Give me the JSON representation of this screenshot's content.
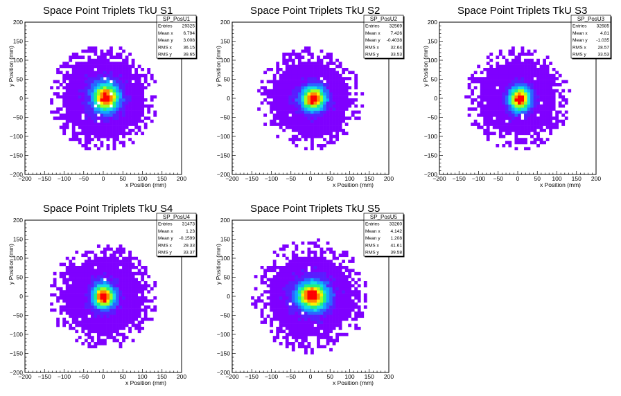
{
  "chart_data": [
    {
      "type": "heatmap",
      "title": "Space Point Triplets TkU S1",
      "xlabel": "x Position (mm)",
      "ylabel": "y Position (mm)",
      "xlim": [
        -200,
        200
      ],
      "ylim": [
        -200,
        200
      ],
      "xticks": [
        "−200",
        "−150",
        "−100",
        "−50",
        "0",
        "50",
        "100",
        "150",
        "200"
      ],
      "yticks": [
        "−200",
        "−150",
        "−100",
        "−50",
        "0",
        "50",
        "100",
        "150",
        "200"
      ],
      "stats": {
        "name": "SP_PosU1",
        "rows": [
          [
            "Entries",
            "29325"
          ],
          [
            "Mean x",
            "6.794"
          ],
          [
            "Mean y",
            "3.008"
          ],
          [
            "RMS x",
            "36.15"
          ],
          [
            "RMS y",
            "39.65"
          ]
        ]
      },
      "distribution": {
        "center_x": 6.794,
        "center_y": 3.008,
        "rms_x": 36.15,
        "rms_y": 39.65,
        "radius": 140
      },
      "peak_color": "#ff0000"
    },
    {
      "type": "heatmap",
      "title": "Space Point Triplets TkU S2",
      "xlabel": "x Position (mm)",
      "ylabel": "y Position (mm)",
      "xlim": [
        -200,
        200
      ],
      "ylim": [
        -200,
        200
      ],
      "xticks": [
        "−200",
        "−150",
        "−100",
        "−50",
        "0",
        "50",
        "100",
        "150",
        "200"
      ],
      "yticks": [
        "−200",
        "−150",
        "−100",
        "−50",
        "0",
        "50",
        "100",
        "150",
        "200"
      ],
      "stats": {
        "name": "SP_PosU2",
        "rows": [
          [
            "Entries",
            "32569"
          ],
          [
            "Mean x",
            "7.426"
          ],
          [
            "Mean y",
            "-0.4038"
          ],
          [
            "RMS x",
            "32.64"
          ],
          [
            "RMS y",
            "33.53"
          ]
        ]
      },
      "distribution": {
        "center_x": 7.426,
        "center_y": -0.4038,
        "rms_x": 32.64,
        "rms_y": 33.53,
        "radius": 135
      },
      "peak_color": "#ff0000"
    },
    {
      "type": "heatmap",
      "title": "Space Point Triplets TkU S3",
      "xlabel": "x Position (mm)",
      "ylabel": "y Position (mm)",
      "xlim": [
        -200,
        200
      ],
      "ylim": [
        -200,
        200
      ],
      "xticks": [
        "−200",
        "−150",
        "−100",
        "−50",
        "0",
        "50",
        "100",
        "150",
        "200"
      ],
      "yticks": [
        "−200",
        "−150",
        "−100",
        "−50",
        "0",
        "50",
        "100",
        "150",
        "200"
      ],
      "stats": {
        "name": "SP_PosU3",
        "rows": [
          [
            "Entries",
            "32685"
          ],
          [
            "Mean x",
            "4.81"
          ],
          [
            "Mean y",
            "-1.035"
          ],
          [
            "RMS x",
            "28.57"
          ],
          [
            "RMS y",
            "33.53"
          ]
        ]
      },
      "distribution": {
        "center_x": 4.81,
        "center_y": -1.035,
        "rms_x": 28.57,
        "rms_y": 33.53,
        "radius": 135
      },
      "peak_color": "#ff0000"
    },
    {
      "type": "heatmap",
      "title": "Space Point Triplets TkU S4",
      "xlabel": "x Position (mm)",
      "ylabel": "y Position (mm)",
      "xlim": [
        -200,
        200
      ],
      "ylim": [
        -200,
        200
      ],
      "xticks": [
        "−200",
        "−150",
        "−100",
        "−50",
        "0",
        "50",
        "100",
        "150",
        "200"
      ],
      "yticks": [
        "−200",
        "−150",
        "−100",
        "−50",
        "0",
        "50",
        "100",
        "150",
        "200"
      ],
      "stats": {
        "name": "SP_PosU4",
        "rows": [
          [
            "Entries",
            "31473"
          ],
          [
            "Mean x",
            "1.23"
          ],
          [
            "Mean y",
            "-0.1599"
          ],
          [
            "RMS x",
            "29.33"
          ],
          [
            "RMS y",
            "33.37"
          ]
        ]
      },
      "distribution": {
        "center_x": 1.23,
        "center_y": -0.1599,
        "rms_x": 29.33,
        "rms_y": 33.37,
        "radius": 140
      },
      "peak_color": "#ff0000"
    },
    {
      "type": "heatmap",
      "title": "Space Point Triplets TkU S5",
      "xlabel": "x Position (mm)",
      "ylabel": "y Position (mm)",
      "xlim": [
        -200,
        200
      ],
      "ylim": [
        -200,
        200
      ],
      "xticks": [
        "−200",
        "−150",
        "−100",
        "−50",
        "0",
        "50",
        "100",
        "150",
        "200"
      ],
      "yticks": [
        "−200",
        "−150",
        "−100",
        "−50",
        "0",
        "50",
        "100",
        "150",
        "200"
      ],
      "stats": {
        "name": "SP_PosU5",
        "rows": [
          [
            "Entries",
            "33260"
          ],
          [
            "Mean x",
            "4.142"
          ],
          [
            "Mean y",
            "1.208"
          ],
          [
            "RMS x",
            "41.61"
          ],
          [
            "RMS y",
            "39.58"
          ]
        ]
      },
      "distribution": {
        "center_x": 4.142,
        "center_y": 1.208,
        "rms_x": 41.61,
        "rms_y": 39.58,
        "radius": 150
      },
      "peak_color": "#ff0000"
    }
  ],
  "colors": {
    "palette": [
      "#7f00ff",
      "#5a1cff",
      "#2a66ff",
      "#10a8ff",
      "#14e0e0",
      "#20f080",
      "#a0ff20",
      "#ffee00",
      "#ff8800",
      "#ff0000"
    ],
    "frame": "#000000",
    "background": "#ffffff"
  }
}
